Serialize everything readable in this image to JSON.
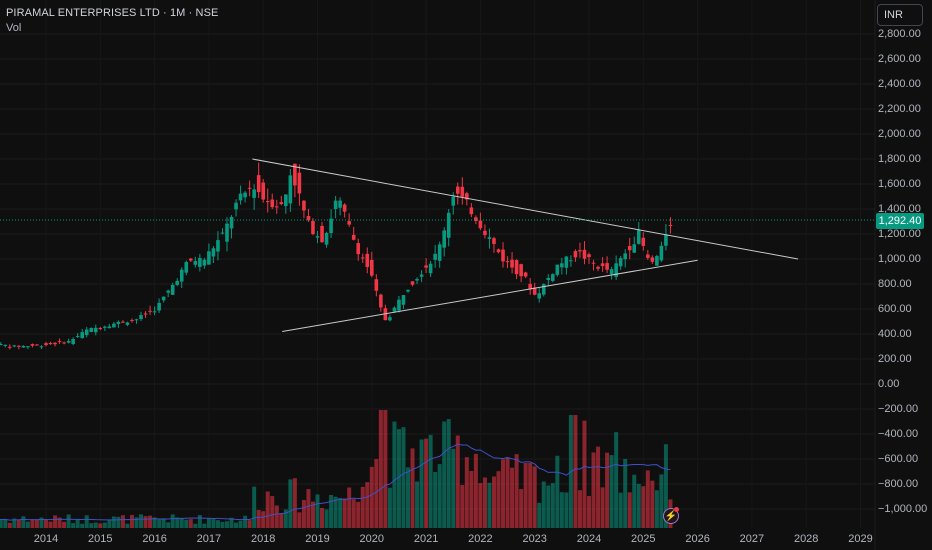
{
  "header": {
    "title": "PIRAMAL ENTERPRISES LTD · 1M · NSE",
    "volume_label": "Vol"
  },
  "currency_button": "INR",
  "last_price": "1,292.40",
  "colors": {
    "up": "#089981",
    "down": "#f23645",
    "trendline": "#c9c9c9",
    "volume_ma": "#3f51c8",
    "background": "#0f0f0f"
  },
  "icons": {
    "flash": "lightning-icon"
  },
  "chart_data": {
    "type": "candlestick",
    "price_axis": {
      "min": -1000,
      "max": 2800,
      "ticks": [
        "2,800.00",
        "2,600.00",
        "2,400.00",
        "2,200.00",
        "2,000.00",
        "1,800.00",
        "1,600.00",
        "1,400.00",
        "1,200.00",
        "1,000.00",
        "800.00",
        "600.00",
        "400.00",
        "200.00",
        "0.00",
        "−200.00",
        "−400.00",
        "−600.00",
        "−800.00",
        "−1,000.00"
      ]
    },
    "time_axis": {
      "ticks": [
        "2014",
        "2015",
        "2016",
        "2017",
        "2018",
        "2019",
        "2020",
        "2021",
        "2022",
        "2023",
        "2024",
        "2025",
        "2026",
        "2027",
        "2028",
        "2029"
      ]
    },
    "series": [
      {
        "name": "Price",
        "points": [
          [
            2013.0,
            330
          ],
          [
            2013.5,
            300
          ],
          [
            2014.0,
            310
          ],
          [
            2014.5,
            340
          ],
          [
            2014.83,
            430
          ],
          [
            2015.3,
            480
          ],
          [
            2015.75,
            520
          ],
          [
            2016.1,
            600
          ],
          [
            2016.4,
            780
          ],
          [
            2016.7,
            980
          ],
          [
            2017.0,
            1000
          ],
          [
            2017.35,
            1200
          ],
          [
            2017.6,
            1450
          ],
          [
            2017.9,
            1600
          ],
          [
            2018.1,
            1480
          ],
          [
            2018.45,
            1420
          ],
          [
            2018.6,
            1720
          ],
          [
            2018.9,
            1280
          ],
          [
            2019.2,
            1150
          ],
          [
            2019.45,
            1500
          ],
          [
            2019.8,
            1100
          ],
          [
            2020.05,
            900
          ],
          [
            2020.25,
            600
          ],
          [
            2020.35,
            500
          ],
          [
            2020.7,
            750
          ],
          [
            2021.0,
            900
          ],
          [
            2021.3,
            1050
          ],
          [
            2021.6,
            1550
          ],
          [
            2021.9,
            1400
          ],
          [
            2022.2,
            1200
          ],
          [
            2022.5,
            1000
          ],
          [
            2022.9,
            850
          ],
          [
            2023.1,
            700
          ],
          [
            2023.5,
            950
          ],
          [
            2023.9,
            1050
          ],
          [
            2024.2,
            950
          ],
          [
            2024.5,
            900
          ],
          [
            2024.75,
            1050
          ],
          [
            2025.0,
            1200
          ],
          [
            2025.2,
            950
          ],
          [
            2025.4,
            1050
          ],
          [
            2025.55,
            1292.4
          ]
        ]
      },
      {
        "name": "Vol",
        "note": "volume bars with moving average"
      }
    ],
    "trendlines": [
      {
        "from": [
          2017.8,
          1800
        ],
        "to": [
          2027.85,
          1000
        ]
      },
      {
        "from": [
          2018.35,
          420
        ],
        "to": [
          2026.0,
          990
        ]
      }
    ]
  }
}
